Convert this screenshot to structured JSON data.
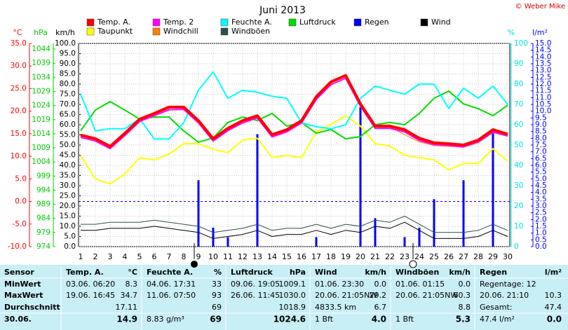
{
  "chart_data": {
    "type": "line",
    "title": "Juni 2013",
    "credit": "© Weber Mike",
    "x": [
      1,
      2,
      3,
      4,
      5,
      6,
      7,
      8,
      9,
      10,
      11,
      12,
      13,
      14,
      15,
      16,
      17,
      18,
      19,
      20,
      21,
      22,
      23,
      24,
      25,
      26,
      27,
      28,
      29,
      30
    ],
    "xlim": [
      1,
      30
    ],
    "xticks": [
      1,
      2,
      3,
      4,
      5,
      6,
      7,
      8,
      9,
      10,
      11,
      12,
      13,
      14,
      15,
      16,
      17,
      18,
      19,
      20,
      21,
      22,
      23,
      24,
      25,
      26,
      27,
      28,
      29,
      30
    ],
    "grid": true,
    "axes": {
      "temp": {
        "label": "°C",
        "color": "#ff0000",
        "side": "left",
        "lim": [
          -10,
          35
        ],
        "zero_line": true,
        "ticks": [
          {
            "value": -10,
            "label": "-10.0"
          },
          {
            "value": -5,
            "label": "-5.0"
          },
          {
            "value": 0,
            "label": "0.0"
          },
          {
            "value": 5,
            "label": "5.0"
          },
          {
            "value": 10,
            "label": "10.0"
          },
          {
            "value": 15,
            "label": "15.0"
          },
          {
            "value": 20,
            "label": "20.0"
          },
          {
            "value": 25,
            "label": "25.0"
          },
          {
            "value": 30,
            "label": "30.0"
          },
          {
            "value": 35,
            "label": "35.0"
          }
        ]
      },
      "pressure": {
        "label": "hPa",
        "color": "#00cc00",
        "side": "left",
        "lim": [
          974,
          1046
        ],
        "ticks": [
          974,
          979,
          984,
          989,
          994,
          999,
          1004,
          1009,
          1014,
          1019,
          1024,
          1029,
          1034,
          1039,
          1044
        ]
      },
      "wind": {
        "label": "km/h",
        "color": "#000000",
        "side": "left",
        "lim": [
          0,
          100
        ],
        "grid": true,
        "ticks": [
          {
            "value": 0,
            "label": "0.0"
          },
          {
            "value": 5,
            "label": "5.0"
          },
          {
            "value": 10,
            "label": "10.0"
          },
          {
            "value": 15,
            "label": "15.0"
          },
          {
            "value": 20,
            "label": "20.0"
          },
          {
            "value": 25,
            "label": "25.0"
          },
          {
            "value": 30,
            "label": "30.0"
          },
          {
            "value": 35,
            "label": "35.0"
          },
          {
            "value": 40,
            "label": "40.0"
          },
          {
            "value": 45,
            "label": "45.0"
          },
          {
            "value": 50,
            "label": "50.0"
          },
          {
            "value": 55,
            "label": "55.0"
          },
          {
            "value": 60,
            "label": "60.0"
          },
          {
            "value": 65,
            "label": "65.0"
          },
          {
            "value": 70,
            "label": "70.0"
          },
          {
            "value": 75,
            "label": "75.0"
          },
          {
            "value": 80,
            "label": "80.0"
          },
          {
            "value": 85,
            "label": "85.0"
          },
          {
            "value": 90,
            "label": "90.0"
          },
          {
            "value": 95,
            "label": "95.0"
          },
          {
            "value": 100,
            "label": "100.0"
          }
        ]
      },
      "humidity": {
        "label": "%",
        "color": "#00e0e0",
        "side": "right",
        "lim": [
          0,
          100
        ],
        "ticks": [
          0,
          10,
          20,
          30,
          40,
          50,
          60,
          70,
          80,
          90,
          100
        ]
      },
      "rain": {
        "label": "l/m²",
        "color": "#0000ff",
        "side": "right",
        "lim": [
          0,
          15
        ],
        "ticks": [
          {
            "value": 0,
            "label": "0.0"
          },
          {
            "value": 0.5,
            "label": "0.5"
          },
          {
            "value": 1,
            "label": "1.0"
          },
          {
            "value": 1.5,
            "label": "1.5"
          },
          {
            "value": 2,
            "label": "2.0"
          },
          {
            "value": 2.5,
            "label": "2.5"
          },
          {
            "value": 3,
            "label": "3.0"
          },
          {
            "value": 3.5,
            "label": "3.5"
          },
          {
            "value": 4,
            "label": "4.0"
          },
          {
            "value": 4.5,
            "label": "4.5"
          },
          {
            "value": 5,
            "label": "5.0"
          },
          {
            "value": 5.5,
            "label": "5.5"
          },
          {
            "value": 6,
            "label": "6.0"
          },
          {
            "value": 6.5,
            "label": "6.5"
          },
          {
            "value": 7,
            "label": "7.0"
          },
          {
            "value": 7.5,
            "label": "7.5"
          },
          {
            "value": 8,
            "label": "8.0"
          },
          {
            "value": 8.5,
            "label": "8.5"
          },
          {
            "value": 9,
            "label": "9.0"
          },
          {
            "value": 9.5,
            "label": "9.5"
          },
          {
            "value": 10,
            "label": "10.0"
          },
          {
            "value": 10.5,
            "label": "10.5"
          },
          {
            "value": 11,
            "label": "11.0"
          },
          {
            "value": 11.5,
            "label": "11.5"
          },
          {
            "value": 12,
            "label": "12.0"
          },
          {
            "value": 12.5,
            "label": "12.5"
          },
          {
            "value": 13,
            "label": "13.0"
          },
          {
            "value": 13.5,
            "label": "13.5"
          },
          {
            "value": 14,
            "label": "14.0"
          },
          {
            "value": 14.5,
            "label": "14.5"
          },
          {
            "value": 15,
            "label": "15.0"
          }
        ]
      }
    },
    "series": [
      {
        "name": "Temp. A.",
        "color": "#ff0000",
        "axis": "temp",
        "kind": "line",
        "line_width": 4,
        "values": [
          14.7,
          13.9,
          12.2,
          15.1,
          18.2,
          19.5,
          20.9,
          20.9,
          17.9,
          13.9,
          16.2,
          17.9,
          19.0,
          14.8,
          15.9,
          17.9,
          23.2,
          26.5,
          27.9,
          21.6,
          16.7,
          16.7,
          15.9,
          14.0,
          13.0,
          12.8,
          12.5,
          13.6,
          15.9,
          14.9
        ]
      },
      {
        "name": "Temp. 2",
        "color": "#ff00ff",
        "axis": "temp",
        "kind": "line",
        "line_width": 2,
        "values": [
          14.2,
          13.4,
          11.7,
          14.6,
          17.7,
          19.0,
          20.3,
          20.4,
          17.4,
          13.4,
          15.7,
          17.4,
          18.5,
          14.3,
          15.4,
          17.4,
          22.6,
          25.9,
          27.3,
          21.1,
          16.2,
          16.2,
          15.4,
          13.5,
          12.6,
          12.4,
          12.1,
          13.2,
          15.4,
          14.5
        ]
      },
      {
        "name": "Feuchte A.",
        "color": "#00ffff",
        "axis": "humidity",
        "kind": "line",
        "line_width": 2,
        "values": [
          75,
          57,
          58,
          58,
          63,
          53,
          53,
          61,
          77,
          86,
          73,
          77,
          76,
          74,
          73,
          61,
          59,
          58,
          60,
          73,
          79,
          77,
          75,
          80,
          80,
          68,
          78,
          73,
          79,
          70
        ]
      },
      {
        "name": "Luftdruck",
        "color": "#00dd00",
        "axis": "pressure",
        "kind": "line",
        "line_width": 2,
        "values": [
          1015.0,
          1022.4,
          1025.4,
          1022.4,
          1019.2,
          1019.9,
          1019.9,
          1015.0,
          1011.0,
          1012.5,
          1018.0,
          1019.9,
          1018.7,
          1021.2,
          1016.7,
          1018.0,
          1014.2,
          1015.5,
          1012.2,
          1013.0,
          1017.2,
          1018.0,
          1017.2,
          1021.2,
          1026.6,
          1029.1,
          1024.6,
          1022.9,
          1020.4,
          1024.1
        ]
      },
      {
        "name": "Regen",
        "color": "#0000ff",
        "axis": "rain",
        "kind": "bar",
        "values": [
          0,
          0,
          0,
          0,
          0,
          0,
          0,
          0,
          4.9,
          1.4,
          0.7,
          0,
          8.3,
          0,
          0,
          0,
          0.7,
          0,
          0,
          10.3,
          2.1,
          0,
          0.7,
          1.4,
          3.5,
          0,
          4.9,
          0,
          8.5,
          0
        ]
      },
      {
        "name": "Wind",
        "color": "#000000",
        "axis": "wind",
        "kind": "line",
        "line_width": 1,
        "values": [
          8,
          8,
          9,
          9,
          9,
          10,
          9,
          8,
          7,
          4,
          5,
          6,
          8,
          5,
          6,
          6,
          8,
          6,
          8,
          7,
          10,
          9,
          12,
          8,
          4,
          4,
          4,
          5,
          8,
          5
        ]
      },
      {
        "name": "Taupunkt",
        "color": "#ffff00",
        "axis": "temp",
        "kind": "line",
        "line_width": 2,
        "values": [
          10.2,
          5.0,
          3.9,
          6.1,
          9.7,
          9.2,
          10.5,
          12.8,
          12.8,
          11.6,
          10.8,
          13.6,
          14.0,
          9.7,
          10.2,
          9.7,
          15.4,
          17.1,
          19.0,
          16.7,
          12.8,
          12.3,
          10.2,
          9.7,
          9.2,
          7.0,
          8.4,
          8.4,
          11.7,
          8.9
        ]
      },
      {
        "name": "Windchill",
        "color": "#ff8000",
        "axis": "temp",
        "kind": "line",
        "line_width": 1,
        "values": [
          14.5,
          13.6,
          11.8,
          14.8,
          18.0,
          19.4,
          20.8,
          20.8,
          17.8,
          13.6,
          16.0,
          17.8,
          18.9,
          14.6,
          15.7,
          17.8,
          23.2,
          26.5,
          27.9,
          21.5,
          16.2,
          16.5,
          14.8,
          13.2,
          12.4,
          12.2,
          12.0,
          13.0,
          15.2,
          14.5
        ]
      },
      {
        "name": "Windböen",
        "color": "#2f4f4f",
        "axis": "wind",
        "kind": "line",
        "line_width": 1,
        "values": [
          11,
          11,
          12,
          12,
          12,
          13,
          12,
          11,
          10,
          7,
          8,
          9,
          11,
          8,
          9,
          9,
          11,
          9,
          11,
          10,
          13,
          12,
          15,
          11,
          7,
          7,
          7,
          8,
          11,
          8
        ]
      }
    ]
  },
  "table": {
    "sensor_label": "Sensor",
    "columns": [
      {
        "name": "Temp. A.",
        "unit": "°C"
      },
      {
        "name": "Feuchte A.",
        "unit": "%"
      },
      {
        "name": "Luftdruck",
        "unit": "hPa"
      },
      {
        "name": "Wind",
        "unit": "km/h"
      },
      {
        "name": "Windböen",
        "unit": "km/h"
      },
      {
        "name": "Regen",
        "unit": "l/m²"
      }
    ],
    "rows": [
      {
        "label": "MinWert",
        "cells": [
          [
            "03.06. 06:20",
            "8.3"
          ],
          [
            "04.06. 17:31",
            "33"
          ],
          [
            "09.06. 19:05",
            "1009.1"
          ],
          [
            "01.06. 23:30",
            "0.0"
          ],
          [
            "01.06. 01:15",
            "0.0"
          ],
          [
            "Regentage: 12",
            null
          ]
        ]
      },
      {
        "label": "MaxWert",
        "cells": [
          [
            "19.06. 16:45",
            "34.7"
          ],
          [
            "11.06. 07:50",
            "93"
          ],
          [
            "26.06. 11:45",
            "1030.0"
          ],
          [
            "20.06. 21:05NW",
            "29.2"
          ],
          [
            "20.06. 21:05NW",
            "60.3"
          ],
          [
            "20.06. 21:10",
            "10.3"
          ]
        ]
      },
      {
        "label": "Durchschnitt",
        "cells": [
          [
            null,
            "17.11"
          ],
          [
            null,
            "69"
          ],
          [
            null,
            "1018.9"
          ],
          [
            "4833.5 km",
            "6.7"
          ],
          [
            null,
            "8.8"
          ],
          [
            "Gesamt:",
            "47.4"
          ]
        ]
      },
      {
        "label": "30.06.",
        "cells": [
          [
            null,
            "14.9"
          ],
          [
            "8.83 g/m³",
            "69"
          ],
          [
            null,
            "1024.6"
          ],
          [
            "1 Bft",
            "4.0"
          ],
          [
            "1 Bft",
            "5.3"
          ],
          [
            "47.4 l/m²",
            "0.0"
          ]
        ]
      }
    ]
  }
}
